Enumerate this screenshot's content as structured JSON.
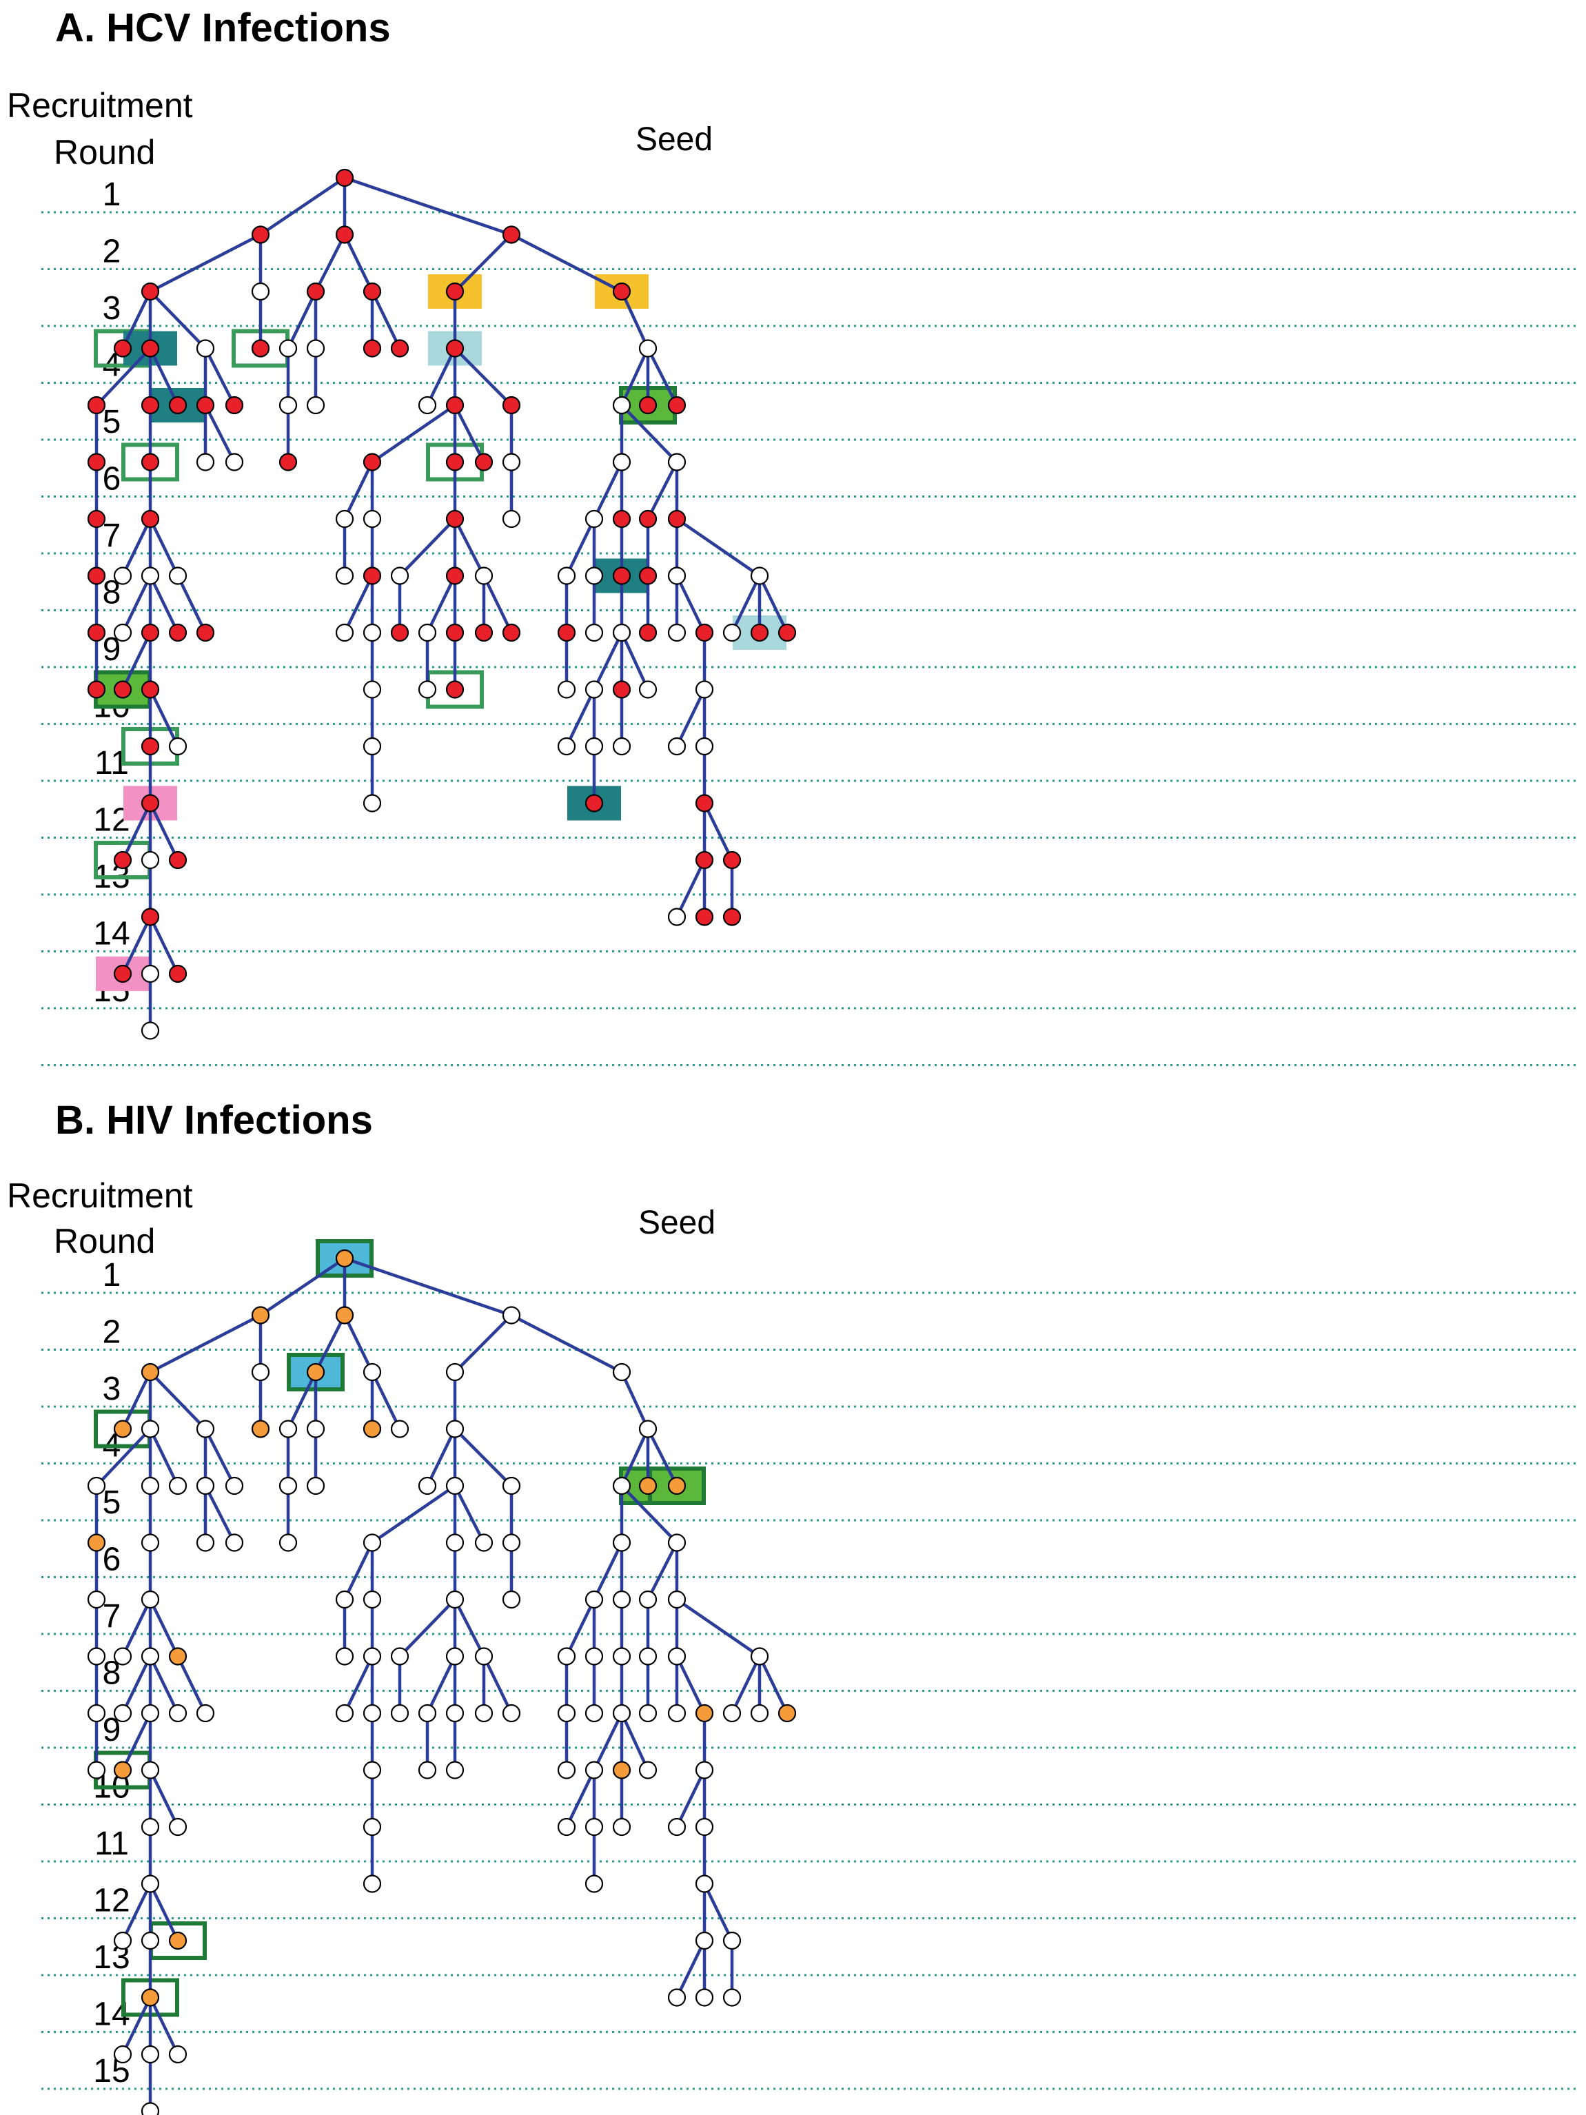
{
  "panels": [
    {
      "title": "A.  HCV Infections",
      "header_line1": "Recruitment",
      "header_line2": "Round",
      "seed_label": "Seed"
    },
    {
      "title": "B.  HIV Infections",
      "header_line1": "Recruitment",
      "header_line2": "Round",
      "seed_label": "Seed"
    }
  ],
  "rounds": [
    "1",
    "2",
    "3",
    "4",
    "5",
    "6",
    "7",
    "8",
    "9",
    "10",
    "11",
    "12",
    "13",
    "14",
    "15"
  ],
  "colors": {
    "edge": "#2b3d99",
    "guide": "#2a9a8c",
    "node_white": "#ffffff",
    "hcv_positive": "#e8202a",
    "hiv_positive": "#f59b3a",
    "box_outline": "#3a9a5a",
    "box_outline_dark": "#1f7a35",
    "fill_yellow": "#f5c22e",
    "fill_teal": "#1f7f82",
    "fill_lightblue": "#a8d8dc",
    "fill_green": "#5cb83a",
    "fill_pink": "#f291c4",
    "fill_cyan": "#4fb8d8"
  }
}
